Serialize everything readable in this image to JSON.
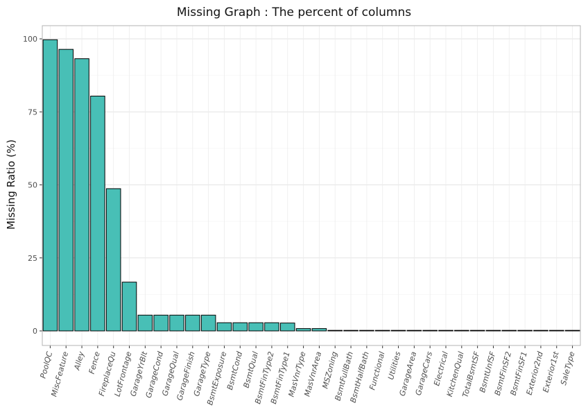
{
  "chart_data": {
    "type": "bar",
    "title": "Missing Graph : The percent of columns",
    "xlabel": "",
    "ylabel": "Missing Ratio (%)",
    "ylim": [
      0,
      104
    ],
    "yticks": [
      0,
      25,
      50,
      75,
      100
    ],
    "grid": true,
    "bar_color": "#48bfb6",
    "categories": [
      "PoolQC",
      "MiscFeature",
      "Alley",
      "Fence",
      "FireplaceQu",
      "LotFrontage",
      "GarageYrBlt",
      "GarageCond",
      "GarageQual",
      "GarageFinish",
      "GarageType",
      "BsmtExposure",
      "BsmtCond",
      "BsmtQual",
      "BsmtFinType2",
      "BsmtFinType1",
      "MasVnrType",
      "MasVnrArea",
      "MSZoning",
      "BsmtFullBath",
      "BsmtHalfBath",
      "Functional",
      "Utilities",
      "GarageArea",
      "GarageCars",
      "Electrical",
      "KitchenQual",
      "TotalBsmtSF",
      "BsmtUnfSF",
      "BsmtFinSF2",
      "BsmtFinSF1",
      "Exterior2nd",
      "Exterior1st",
      "SaleType"
    ],
    "values": [
      99.7,
      96.4,
      93.2,
      80.4,
      48.7,
      16.7,
      5.4,
      5.4,
      5.4,
      5.4,
      5.4,
      2.8,
      2.8,
      2.8,
      2.8,
      2.7,
      0.8,
      0.8,
      0.1,
      0.1,
      0.1,
      0.1,
      0.1,
      0.1,
      0.1,
      0.1,
      0.1,
      0.1,
      0.1,
      0.1,
      0.1,
      0.1,
      0.1,
      0.1
    ]
  }
}
